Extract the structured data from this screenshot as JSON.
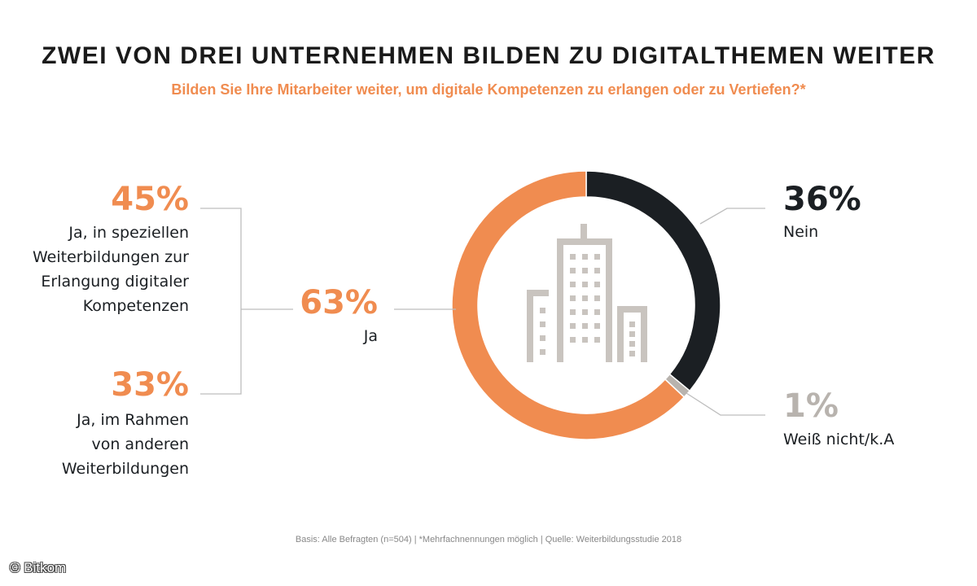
{
  "chart_data": {
    "type": "pie",
    "title": "ZWEI VON DREI UNTERNEHMEN BILDEN ZU DIGITALTHEMEN WEITER",
    "subtitle": "Bilden Sie Ihre Mitarbeiter weiter, um digitale Kompetenzen zu erlangen oder zu Vertiefen?*",
    "slices": [
      {
        "label": "Nein",
        "value": 36,
        "display": "36%",
        "color": "#1b1f23"
      },
      {
        "label": "Weiß nicht/k.A",
        "value": 1,
        "display": "1%",
        "color": "#b8b3ae"
      },
      {
        "label": "Ja",
        "value": 63,
        "display": "63%",
        "color": "#f08c50"
      }
    ],
    "breakdown": [
      {
        "value": 45,
        "display": "45%",
        "lines": [
          "Ja, in speziellen",
          "Weiterbildungen zur",
          "Erlangung digitaler",
          "Kompetenzen"
        ]
      },
      {
        "value": 33,
        "display": "33%",
        "lines": [
          "Ja, im Rahmen",
          "von anderen",
          "Weiterbildungen"
        ]
      }
    ]
  },
  "footer": "Basis: Alle Befragten (n=504) | *Mehrfachnennungen möglich | Quelle: Weiterbildungsstudie 2018",
  "copyright": "© Bitkom",
  "colors": {
    "accent": "#f08c50",
    "dark": "#1b1f23",
    "grey": "#b8b3ae",
    "line": "#bdbdbd"
  }
}
